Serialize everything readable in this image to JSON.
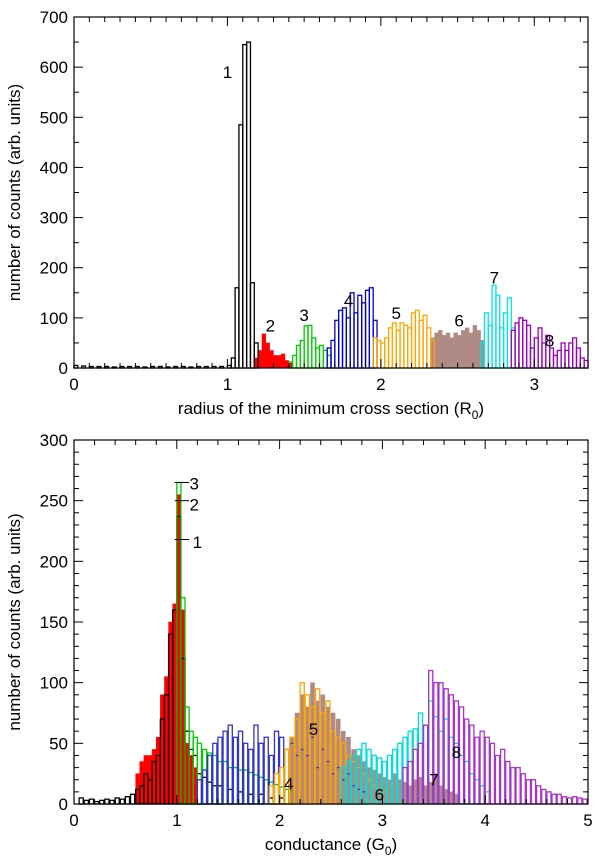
{
  "chart_data": [
    {
      "type": "bar",
      "xlabel": "radius of the minimum cross section (R",
      "xlabel_sub": "0",
      "xlabel_close": ")",
      "ylabel": "number of counts (arb. units)",
      "xlim": [
        0,
        3.35
      ],
      "ylim": [
        0,
        700
      ],
      "x_ticks": [
        0,
        1,
        2,
        3
      ],
      "x_tick_labels": [
        "0",
        "1",
        "2",
        "3"
      ],
      "y_ticks": [
        0,
        100,
        200,
        300,
        400,
        500,
        600,
        700
      ],
      "y_tick_labels": [
        "0",
        "100",
        "200",
        "300",
        "400",
        "500",
        "600",
        "700"
      ],
      "bin_width": 0.025,
      "series": [
        {
          "label": "1",
          "color": "#000000",
          "style": "outline",
          "x": [
            0.0,
            0.05,
            0.1,
            0.15,
            0.2,
            0.25,
            0.3,
            0.35,
            0.4,
            0.45,
            0.5,
            0.55,
            0.6,
            0.65,
            0.7,
            0.75,
            0.8,
            0.85,
            0.9,
            0.95,
            1.0,
            1.025,
            1.05,
            1.075,
            1.1,
            1.125,
            1.15,
            1.175
          ],
          "values": [
            5,
            4,
            3,
            3,
            3,
            2,
            3,
            3,
            3,
            2,
            3,
            3,
            2,
            3,
            3,
            2,
            3,
            3,
            3,
            3,
            5,
            20,
            160,
            485,
            645,
            650,
            170,
            50
          ]
        },
        {
          "label": "2",
          "color": "#ff0000",
          "style": "filled",
          "x": [
            1.175,
            1.2,
            1.225,
            1.25,
            1.275,
            1.3,
            1.325,
            1.35,
            1.375,
            1.4
          ],
          "values": [
            20,
            35,
            68,
            50,
            35,
            25,
            25,
            28,
            15,
            10
          ]
        },
        {
          "label": "3",
          "color": "#00cc00",
          "style": "outline",
          "x": [
            1.4,
            1.425,
            1.45,
            1.475,
            1.5,
            1.525,
            1.55,
            1.575,
            1.6,
            1.625,
            1.65
          ],
          "values": [
            12,
            25,
            45,
            55,
            84,
            85,
            60,
            40,
            45,
            35,
            25
          ]
        },
        {
          "label": "4",
          "color": "#0000cc",
          "style": "outline",
          "x": [
            1.65,
            1.675,
            1.7,
            1.725,
            1.75,
            1.775,
            1.8,
            1.825,
            1.85,
            1.875,
            1.9,
            1.925,
            1.95
          ],
          "values": [
            40,
            55,
            95,
            115,
            120,
            100,
            150,
            110,
            145,
            130,
            155,
            160,
            95
          ]
        },
        {
          "label": "5",
          "color": "#ffa500",
          "style": "outline",
          "x": [
            1.95,
            1.975,
            2.0,
            2.025,
            2.05,
            2.075,
            2.1,
            2.125,
            2.15,
            2.175,
            2.2,
            2.225,
            2.25,
            2.275,
            2.3,
            2.325
          ],
          "values": [
            60,
            55,
            50,
            60,
            80,
            90,
            75,
            90,
            85,
            80,
            110,
            115,
            95,
            105,
            80,
            55
          ]
        },
        {
          "label": "6",
          "color": "#b08a85",
          "style": "filled",
          "x": [
            2.325,
            2.35,
            2.375,
            2.4,
            2.425,
            2.45,
            2.475,
            2.5,
            2.525,
            2.55,
            2.575,
            2.6,
            2.625,
            2.65
          ],
          "values": [
            60,
            70,
            75,
            65,
            70,
            60,
            70,
            65,
            75,
            80,
            70,
            85,
            75,
            55
          ]
        },
        {
          "label": "7",
          "color": "#00e5e5",
          "style": "outline",
          "x": [
            2.65,
            2.675,
            2.7,
            2.725,
            2.75,
            2.775,
            2.8,
            2.825,
            2.85
          ],
          "values": [
            50,
            110,
            85,
            165,
            145,
            80,
            110,
            140,
            80
          ]
        },
        {
          "label": "8",
          "color": "#9900bb",
          "style": "outline",
          "x": [
            2.85,
            2.875,
            2.9,
            2.925,
            2.95,
            2.975,
            3.0,
            3.025,
            3.05,
            3.075,
            3.1,
            3.125,
            3.15,
            3.175,
            3.2,
            3.225,
            3.25,
            3.275,
            3.3,
            3.325
          ],
          "values": [
            75,
            90,
            100,
            95,
            85,
            40,
            60,
            80,
            50,
            65,
            40,
            25,
            35,
            50,
            35,
            50,
            60,
            40,
            20,
            15
          ]
        }
      ],
      "annotations": [
        {
          "text": "1",
          "x": 1.0,
          "y": 590
        },
        {
          "text": "2",
          "x": 1.28,
          "y": 85
        },
        {
          "text": "3",
          "x": 1.5,
          "y": 106
        },
        {
          "text": "4",
          "x": 1.79,
          "y": 135
        },
        {
          "text": "5",
          "x": 2.1,
          "y": 110
        },
        {
          "text": "6",
          "x": 2.51,
          "y": 95
        },
        {
          "text": "7",
          "x": 2.74,
          "y": 180
        },
        {
          "text": "8",
          "x": 3.1,
          "y": 55
        }
      ]
    },
    {
      "type": "bar",
      "xlabel": "conductance (G",
      "xlabel_sub": "0",
      "xlabel_close": ")",
      "ylabel": "number of counts (arb. units)",
      "xlim": [
        0,
        5
      ],
      "ylim": [
        0,
        300
      ],
      "x_ticks": [
        0,
        1,
        2,
        3,
        4,
        5
      ],
      "x_tick_labels": [
        "0",
        "1",
        "2",
        "3",
        "4",
        "5"
      ],
      "y_ticks": [
        0,
        50,
        100,
        150,
        200,
        250,
        300
      ],
      "y_tick_labels": [
        "0",
        "50",
        "100",
        "150",
        "200",
        "250",
        "300"
      ],
      "bin_width": 0.04,
      "series": [
        {
          "label": "1",
          "color": "#000000",
          "style": "outline",
          "x": [
            0.05,
            0.1,
            0.15,
            0.2,
            0.25,
            0.3,
            0.35,
            0.4,
            0.45,
            0.5,
            0.55,
            0.6,
            0.64,
            0.68,
            0.72,
            0.76,
            0.8,
            0.84,
            0.88,
            0.92,
            0.96,
            1.0,
            1.04,
            1.08,
            1.12,
            1.16,
            1.2,
            1.25,
            1.3,
            1.35,
            1.4,
            1.5,
            1.6,
            1.7,
            1.8,
            1.9,
            2.0
          ],
          "values": [
            5,
            3,
            4,
            2,
            3,
            4,
            3,
            5,
            4,
            6,
            8,
            12,
            15,
            25,
            20,
            35,
            40,
            70,
            90,
            140,
            160,
            237,
            120,
            60,
            45,
            40,
            25,
            22,
            18,
            15,
            15,
            12,
            10,
            8,
            8,
            5,
            5
          ]
        },
        {
          "label": "2",
          "color": "#ff0000",
          "style": "filled",
          "x": [
            0.6,
            0.64,
            0.68,
            0.72,
            0.76,
            0.8,
            0.84,
            0.88,
            0.92,
            0.96,
            1.0,
            1.04,
            1.08,
            1.12,
            1.16
          ],
          "values": [
            25,
            35,
            40,
            40,
            45,
            55,
            90,
            105,
            150,
            165,
            255,
            160,
            50,
            40,
            30
          ]
        },
        {
          "label": "3",
          "color": "#00cc00",
          "style": "outline",
          "x": [
            1.0,
            1.04,
            1.08,
            1.12,
            1.16,
            1.2,
            1.25,
            1.3,
            1.35,
            1.4,
            1.45,
            1.5,
            1.55,
            1.6,
            1.65,
            1.7,
            1.75,
            1.8,
            1.85,
            1.9,
            1.95,
            2.0,
            2.05,
            2.1
          ],
          "values": [
            265,
            170,
            80,
            60,
            55,
            50,
            45,
            42,
            40,
            35,
            35,
            30,
            30,
            28,
            28,
            26,
            24,
            22,
            20,
            18,
            16,
            14,
            12,
            10
          ]
        },
        {
          "label": "4",
          "color": "#3333cc",
          "style": "outline",
          "x": [
            1.2,
            1.25,
            1.3,
            1.35,
            1.4,
            1.45,
            1.5,
            1.55,
            1.6,
            1.65,
            1.7,
            1.75,
            1.8,
            1.85,
            1.9,
            1.95,
            2.0,
            2.05,
            2.1,
            2.15,
            2.2,
            2.25,
            2.3,
            2.35,
            2.4,
            2.45,
            2.5,
            2.55,
            2.6,
            2.65,
            2.7,
            2.75,
            2.8
          ],
          "values": [
            20,
            28,
            40,
            50,
            55,
            60,
            65,
            55,
            60,
            50,
            45,
            65,
            50,
            55,
            40,
            60,
            55,
            45,
            50,
            40,
            45,
            40,
            55,
            30,
            45,
            35,
            25,
            30,
            20,
            25,
            15,
            12,
            10
          ]
        },
        {
          "label": "5",
          "color": "#ffa500",
          "style": "outline",
          "x": [
            1.9,
            1.95,
            2.0,
            2.05,
            2.1,
            2.15,
            2.2,
            2.25,
            2.3,
            2.35,
            2.4,
            2.45,
            2.5,
            2.55,
            2.6,
            2.65,
            2.7,
            2.75,
            2.8,
            2.85,
            2.9,
            2.95,
            3.0
          ],
          "values": [
            15,
            25,
            30,
            45,
            55,
            70,
            100,
            90,
            80,
            95,
            75,
            85,
            60,
            55,
            50,
            40,
            35,
            30,
            25,
            20,
            15,
            12,
            10
          ]
        },
        {
          "label": "6",
          "color": "#b08a85",
          "style": "filled",
          "x": [
            2.1,
            2.15,
            2.2,
            2.25,
            2.3,
            2.35,
            2.4,
            2.45,
            2.5,
            2.55,
            2.6,
            2.65,
            2.7,
            2.75,
            2.8,
            2.85,
            2.9,
            2.95,
            3.0,
            3.05,
            3.1,
            3.15,
            3.2,
            3.25,
            3.3,
            3.35,
            3.4,
            3.45,
            3.5,
            3.55,
            3.6,
            3.65,
            3.7
          ],
          "values": [
            55,
            75,
            90,
            80,
            100,
            85,
            90,
            80,
            75,
            70,
            60,
            55,
            45,
            40,
            35,
            30,
            28,
            25,
            22,
            20,
            25,
            20,
            18,
            15,
            20,
            22,
            15,
            18,
            25,
            15,
            12,
            10,
            8
          ]
        },
        {
          "label": "7",
          "color": "#00dddd",
          "style": "outline",
          "x": [
            2.6,
            2.65,
            2.7,
            2.75,
            2.8,
            2.85,
            2.9,
            2.95,
            3.0,
            3.05,
            3.1,
            3.15,
            3.2,
            3.25,
            3.3,
            3.35,
            3.4,
            3.45,
            3.5,
            3.55,
            3.6,
            3.65,
            3.7,
            3.75,
            3.8,
            3.85,
            3.9,
            3.95,
            4.0
          ],
          "values": [
            30,
            35,
            40,
            45,
            50,
            45,
            40,
            38,
            35,
            40,
            45,
            50,
            55,
            60,
            62,
            75,
            65,
            85,
            72,
            60,
            70,
            55,
            50,
            40,
            35,
            25,
            20,
            15,
            10
          ]
        },
        {
          "label": "8",
          "color": "#aa33cc",
          "style": "outline",
          "x": [
            3.2,
            3.25,
            3.3,
            3.35,
            3.4,
            3.45,
            3.5,
            3.55,
            3.6,
            3.65,
            3.7,
            3.75,
            3.8,
            3.85,
            3.9,
            3.95,
            4.0,
            4.05,
            4.1,
            4.15,
            4.2,
            4.25,
            4.3,
            4.35,
            4.4,
            4.45,
            4.5,
            4.55,
            4.6,
            4.65,
            4.7,
            4.75,
            4.8,
            4.85,
            4.9,
            4.95
          ],
          "values": [
            30,
            35,
            45,
            50,
            65,
            110,
            100,
            100,
            95,
            90,
            85,
            80,
            70,
            65,
            55,
            60,
            55,
            50,
            40,
            45,
            35,
            30,
            30,
            25,
            20,
            20,
            15,
            12,
            10,
            8,
            8,
            6,
            5,
            6,
            5,
            4
          ]
        }
      ],
      "annotations": [
        {
          "text": "3",
          "x": 1.17,
          "y": 264
        },
        {
          "text": "2",
          "x": 1.17,
          "y": 247
        },
        {
          "text": "1",
          "x": 1.2,
          "y": 216
        },
        {
          "text": "5",
          "x": 2.33,
          "y": 62
        },
        {
          "text": "4",
          "x": 2.09,
          "y": 17
        },
        {
          "text": "6",
          "x": 2.97,
          "y": 8
        },
        {
          "text": "7",
          "x": 3.5,
          "y": 20
        },
        {
          "text": "8",
          "x": 3.72,
          "y": 43
        }
      ],
      "leaders": [
        {
          "x1": 0.98,
          "y1": 265,
          "x2": 1.12,
          "y2": 265
        },
        {
          "x1": 0.98,
          "y1": 250,
          "x2": 1.12,
          "y2": 250
        },
        {
          "x1": 0.98,
          "y1": 218,
          "x2": 1.12,
          "y2": 218
        }
      ]
    }
  ]
}
